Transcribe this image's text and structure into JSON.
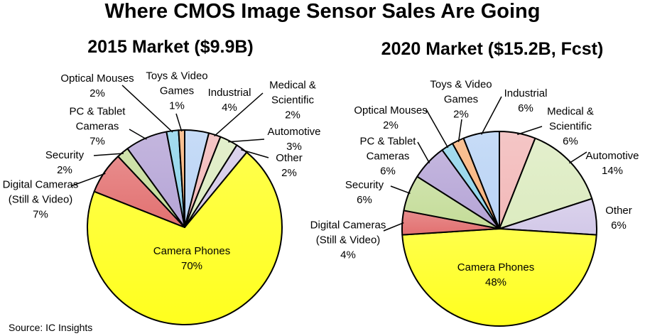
{
  "title": "Where CMOS Image Sensor Sales Are Going",
  "source": "Source: IC Insights",
  "chart_data": [
    {
      "type": "pie",
      "title": "2015 Market ($9.9B)",
      "slices": [
        {
          "name": "Industrial",
          "lines": [
            "Industrial"
          ],
          "value": 4,
          "label": "4%",
          "color": "#b9d3f5"
        },
        {
          "name": "Medical & Scientific",
          "lines": [
            "Medical &",
            "Scientific"
          ],
          "value": 2,
          "label": "2%",
          "color": "#f2b8b8"
        },
        {
          "name": "Automotive",
          "lines": [
            "Automotive"
          ],
          "value": 3,
          "label": "3%",
          "color": "#dcebc0"
        },
        {
          "name": "Other",
          "lines": [
            "Other"
          ],
          "value": 2,
          "label": "2%",
          "color": "#d2c8e8"
        },
        {
          "name": "Camera Phones",
          "lines": [
            "Camera Phones"
          ],
          "value": 70,
          "label": "70%",
          "color": "#ffff1e"
        },
        {
          "name": "Digital Cameras (Still & Video)",
          "lines": [
            "Digital Cameras",
            "(Still & Video)"
          ],
          "value": 7,
          "label": "7%",
          "color": "#e27070"
        },
        {
          "name": "Security",
          "lines": [
            "Security"
          ],
          "value": 2,
          "label": "2%",
          "color": "#c4dc98"
        },
        {
          "name": "PC & Tablet Cameras",
          "lines": [
            "PC & Tablet",
            "Cameras"
          ],
          "value": 7,
          "label": "7%",
          "color": "#b5a4d6"
        },
        {
          "name": "Optical Mouses",
          "lines": [
            "Optical Mouses"
          ],
          "value": 2,
          "label": "2%",
          "color": "#8ed3ea"
        },
        {
          "name": "Toys & Video Games",
          "lines": [
            "Toys & Video",
            "Games"
          ],
          "value": 1,
          "label": "1%",
          "color": "#f8b27a"
        }
      ]
    },
    {
      "type": "pie",
      "title": "2020 Market ($15.2B, Fcst)",
      "slices": [
        {
          "name": "Medical & Scientific",
          "lines": [
            "Medical &",
            "Scientific"
          ],
          "value": 6,
          "label": "6%",
          "color": "#f2b8b8"
        },
        {
          "name": "Automotive",
          "lines": [
            "Automotive"
          ],
          "value": 14,
          "label": "14%",
          "color": "#dcebc0"
        },
        {
          "name": "Other",
          "lines": [
            "Other"
          ],
          "value": 6,
          "label": "6%",
          "color": "#d2c8e8"
        },
        {
          "name": "Camera Phones",
          "lines": [
            "Camera Phones"
          ],
          "value": 48,
          "label": "48%",
          "color": "#ffff1e"
        },
        {
          "name": "Digital Cameras (Still & Video)",
          "lines": [
            "Digital Cameras",
            "(Still & Video)"
          ],
          "value": 4,
          "label": "4%",
          "color": "#e27070"
        },
        {
          "name": "Security",
          "lines": [
            "Security"
          ],
          "value": 6,
          "label": "6%",
          "color": "#c4dc98"
        },
        {
          "name": "PC & Tablet Cameras",
          "lines": [
            "PC & Tablet",
            "Cameras"
          ],
          "value": 6,
          "label": "6%",
          "color": "#b5a4d6"
        },
        {
          "name": "Optical Mouses",
          "lines": [
            "Optical Mouses"
          ],
          "value": 2,
          "label": "2%",
          "color": "#8ed3ea"
        },
        {
          "name": "Toys & Video Games",
          "lines": [
            "Toys & Video",
            "Games"
          ],
          "value": 2,
          "label": "2%",
          "color": "#f8b27a"
        },
        {
          "name": "Industrial",
          "lines": [
            "Industrial"
          ],
          "value": 6,
          "label": "6%",
          "color": "#b9d3f5"
        }
      ]
    }
  ]
}
